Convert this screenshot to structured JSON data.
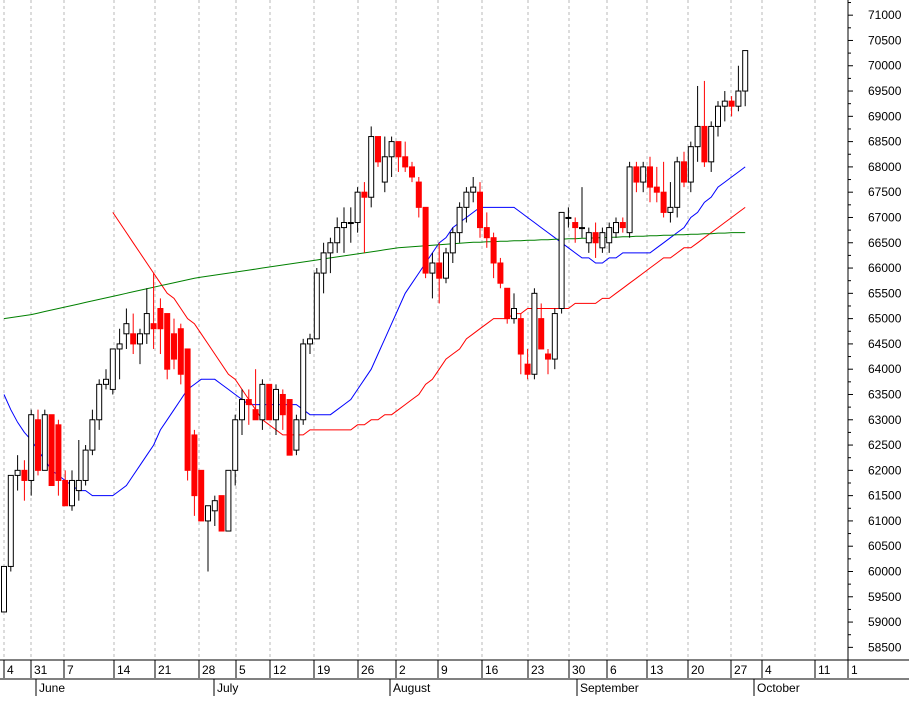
{
  "chart_data": {
    "type": "candlestick",
    "grid": "vertical dashed",
    "yaxis": {
      "side": "right",
      "range": [
        58250,
        71300
      ],
      "ticks": [
        58500,
        59000,
        59500,
        60000,
        60500,
        61000,
        61500,
        62000,
        62500,
        63000,
        63500,
        64000,
        64500,
        65000,
        65500,
        66000,
        66500,
        67000,
        67500,
        68000,
        68500,
        69000,
        69500,
        70000,
        70500,
        71000
      ]
    },
    "xaxis": {
      "day_labels": [
        "4",
        "31",
        "7",
        "14",
        "21",
        "28",
        "5",
        "12",
        "19",
        "26",
        "2",
        "9",
        "16",
        "23",
        "30",
        "6",
        "13",
        "20",
        "27",
        "4",
        "11",
        "1"
      ],
      "month_labels": [
        "June",
        "July",
        "August",
        "September",
        "October"
      ]
    },
    "candles": [
      [
        59200,
        60100,
        59200,
        60100
      ],
      [
        60100,
        61900,
        60000,
        61900
      ],
      [
        61900,
        62300,
        61600,
        62000
      ],
      [
        62000,
        62200,
        61400,
        61800
      ],
      [
        61800,
        63200,
        61500,
        63100
      ],
      [
        63000,
        63200,
        61900,
        62000
      ],
      [
        62000,
        63200,
        62000,
        63100
      ],
      [
        63100,
        63100,
        61700,
        61700
      ],
      [
        62900,
        63000,
        61500,
        61800
      ],
      [
        61800,
        62000,
        61300,
        61300
      ],
      [
        61300,
        62000,
        61200,
        61800
      ],
      [
        61600,
        62600,
        61400,
        61800
      ],
      [
        61800,
        62500,
        61700,
        62400
      ],
      [
        62400,
        63200,
        62300,
        63000
      ],
      [
        63000,
        63800,
        62800,
        63700
      ],
      [
        63700,
        64000,
        63600,
        63800
      ],
      [
        63600,
        64400,
        63500,
        64400
      ],
      [
        64400,
        64800,
        63800,
        64500
      ],
      [
        64700,
        65200,
        64400,
        64900
      ],
      [
        64700,
        65100,
        64300,
        64500
      ],
      [
        64500,
        64800,
        64100,
        64700
      ],
      [
        64700,
        65600,
        64500,
        65100
      ],
      [
        64900,
        65900,
        64400,
        64800
      ],
      [
        65200,
        65400,
        64300,
        64800
      ],
      [
        65100,
        65100,
        63800,
        64000
      ],
      [
        64700,
        65000,
        64000,
        64200
      ],
      [
        64800,
        64900,
        63700,
        63900
      ],
      [
        64400,
        64400,
        61800,
        62000
      ],
      [
        62700,
        62800,
        61100,
        61500
      ],
      [
        62000,
        62000,
        61000,
        61000
      ],
      [
        61000,
        61200,
        60000,
        61300
      ],
      [
        61200,
        61500,
        60900,
        61400
      ],
      [
        61500,
        61500,
        60800,
        60800
      ],
      [
        60800,
        62000,
        60800,
        62000
      ],
      [
        62000,
        63100,
        61700,
        63000
      ],
      [
        63000,
        63600,
        62700,
        63400
      ],
      [
        63400,
        63600,
        62900,
        63300
      ],
      [
        63200,
        64000,
        63000,
        63000
      ],
      [
        63000,
        63800,
        62800,
        63700
      ],
      [
        63700,
        63700,
        63000,
        63000
      ],
      [
        63000,
        63700,
        62700,
        63600
      ],
      [
        63500,
        63600,
        62800,
        63100
      ],
      [
        63400,
        63400,
        62300,
        62300
      ],
      [
        62400,
        63100,
        62300,
        63000
      ],
      [
        63000,
        64600,
        62900,
        64500
      ],
      [
        64500,
        64700,
        64300,
        64600
      ],
      [
        64600,
        66000,
        64600,
        65900
      ],
      [
        65900,
        66500,
        65500,
        66300
      ],
      [
        66300,
        66600,
        65900,
        66500
      ],
      [
        66500,
        67000,
        66300,
        66800
      ],
      [
        66800,
        67200,
        66300,
        66900
      ],
      [
        66900,
        67200,
        66500,
        66900
      ],
      [
        66900,
        67600,
        66700,
        67500
      ],
      [
        67500,
        67700,
        66300,
        67400
      ],
      [
        67400,
        68800,
        67200,
        68600
      ],
      [
        68600,
        68600,
        68000,
        68100
      ],
      [
        67700,
        68600,
        67500,
        68200
      ],
      [
        68200,
        68600,
        67800,
        68500
      ],
      [
        68500,
        68500,
        67900,
        68200
      ],
      [
        68200,
        68500,
        67900,
        68000
      ],
      [
        68000,
        68100,
        67700,
        67800
      ],
      [
        67700,
        67800,
        67000,
        67200
      ],
      [
        67200,
        67200,
        65800,
        65900
      ],
      [
        65900,
        66300,
        65400,
        66100
      ],
      [
        66100,
        66500,
        65300,
        65800
      ],
      [
        65800,
        66400,
        65700,
        66300
      ],
      [
        66300,
        66800,
        66100,
        66700
      ],
      [
        66700,
        67300,
        66500,
        67200
      ],
      [
        67200,
        67600,
        66900,
        67500
      ],
      [
        67500,
        67800,
        67300,
        67600
      ],
      [
        67500,
        67700,
        66600,
        66800
      ],
      [
        66800,
        67100,
        66400,
        66600
      ],
      [
        66600,
        66700,
        65800,
        66100
      ],
      [
        66100,
        66200,
        65600,
        65700
      ],
      [
        65600,
        65600,
        64900,
        65000
      ],
      [
        65000,
        65500,
        64900,
        65200
      ],
      [
        65000,
        65100,
        63900,
        64300
      ],
      [
        64100,
        64400,
        63800,
        63900
      ],
      [
        63900,
        65600,
        63800,
        65500
      ],
      [
        65000,
        65300,
        64400,
        64400
      ],
      [
        64300,
        64400,
        63900,
        64200
      ],
      [
        64200,
        65200,
        64000,
        65100
      ],
      [
        65200,
        67100,
        65100,
        67100
      ],
      [
        67000,
        67200,
        66800,
        67000
      ],
      [
        66900,
        67000,
        66500,
        66800
      ],
      [
        66800,
        67600,
        66600,
        66800
      ],
      [
        66500,
        66800,
        66300,
        66700
      ],
      [
        66700,
        66900,
        66200,
        66500
      ],
      [
        66400,
        66800,
        66300,
        66700
      ],
      [
        66500,
        66900,
        66300,
        66800
      ],
      [
        66700,
        67000,
        66600,
        66900
      ],
      [
        66900,
        67000,
        66700,
        66800
      ],
      [
        66700,
        68100,
        66600,
        68000
      ],
      [
        68000,
        68100,
        67500,
        67700
      ],
      [
        67700,
        68100,
        67500,
        68000
      ],
      [
        68000,
        68200,
        67300,
        67600
      ],
      [
        67600,
        68000,
        67300,
        67500
      ],
      [
        67500,
        68100,
        67000,
        67100
      ],
      [
        67100,
        67700,
        66900,
        67200
      ],
      [
        67200,
        68200,
        67000,
        68100
      ],
      [
        68100,
        68300,
        67600,
        67700
      ],
      [
        67700,
        68500,
        67500,
        68400
      ],
      [
        68400,
        69600,
        68100,
        68800
      ],
      [
        68800,
        69700,
        68000,
        68100
      ],
      [
        68100,
        68900,
        67900,
        68800
      ],
      [
        68800,
        69300,
        68600,
        69200
      ],
      [
        69200,
        69500,
        68900,
        69300
      ],
      [
        69300,
        69400,
        69000,
        69200
      ],
      [
        69200,
        70000,
        69100,
        69500
      ],
      [
        69500,
        70300,
        69200,
        70300
      ]
    ],
    "moving_averages": [
      {
        "color": "#0000ff",
        "values": [
          63500,
          63200,
          62950,
          62750,
          62600,
          62400,
          62200,
          62000,
          61900,
          61800,
          61700,
          61600,
          61600,
          61500,
          61500,
          61500,
          61500,
          61600,
          61700,
          61900,
          62100,
          62300,
          62500,
          62800,
          63000,
          63200,
          63400,
          63600,
          63700,
          63800,
          63800,
          63800,
          63700,
          63600,
          63500,
          63400,
          63300,
          63300,
          63300,
          63300,
          63300,
          63300,
          63300,
          63300,
          63200,
          63100,
          63100,
          63100,
          63100,
          63200,
          63300,
          63400,
          63600,
          63800,
          64000,
          64300,
          64600,
          64900,
          65200,
          65500,
          65700,
          65900,
          66100,
          66300,
          66500,
          66600,
          66800,
          66900,
          67000,
          67100,
          67200,
          67200,
          67200,
          67200,
          67200,
          67200,
          67100,
          67000,
          66900,
          66800,
          66700,
          66600,
          66500,
          66400,
          66300,
          66200,
          66200,
          66100,
          66100,
          66200,
          66200,
          66300,
          66300,
          66300,
          66300,
          66300,
          66400,
          66500,
          66600,
          66700,
          66800,
          67000,
          67100,
          67300,
          67400,
          67600,
          67700,
          67800,
          67900,
          68000
        ]
      },
      {
        "color": "#ff0000",
        "values": [
          67100,
          66900,
          66700,
          66500,
          66300,
          66100,
          65900,
          65700,
          65500,
          65400,
          65200,
          65000,
          64900,
          64700,
          64500,
          64300,
          64100,
          63900,
          63800,
          63600,
          63400,
          63200,
          63000,
          62900,
          62800,
          62700,
          62700,
          62700,
          62700,
          62800,
          62800,
          62800,
          62800,
          62800,
          62800,
          62800,
          62900,
          62900,
          63000,
          63000,
          63100,
          63100,
          63200,
          63300,
          63400,
          63500,
          63700,
          63800,
          64000,
          64200,
          64300,
          64400,
          64600,
          64700,
          64800,
          64900,
          65000,
          65000,
          65000,
          65100,
          65100,
          65200,
          65200,
          65200,
          65200,
          65200,
          65200,
          65200,
          65300,
          65300,
          65300,
          65300,
          65400,
          65400,
          65500,
          65600,
          65700,
          65800,
          65900,
          66000,
          66100,
          66200,
          66200,
          66300,
          66400,
          66400,
          66500,
          66600,
          66700,
          66800,
          66900,
          67000,
          67100,
          67200
        ]
      },
      {
        "color": "#008000",
        "values": [
          65000,
          65020,
          65040,
          65060,
          65080,
          65110,
          65140,
          65170,
          65200,
          65230,
          65260,
          65290,
          65320,
          65350,
          65380,
          65410,
          65440,
          65470,
          65500,
          65530,
          65560,
          65590,
          65620,
          65650,
          65680,
          65710,
          65740,
          65770,
          65800,
          65820,
          65840,
          65860,
          65880,
          65900,
          65920,
          65940,
          65960,
          65980,
          66000,
          66020,
          66040,
          66060,
          66080,
          66100,
          66120,
          66140,
          66160,
          66180,
          66200,
          66220,
          66240,
          66260,
          66280,
          66300,
          66320,
          66340,
          66360,
          66380,
          66400,
          66410,
          66420,
          66430,
          66440,
          66450,
          66460,
          66470,
          66480,
          66490,
          66500,
          66510,
          66510,
          66520,
          66520,
          66530,
          66530,
          66540,
          66540,
          66550,
          66550,
          66560,
          66560,
          66570,
          66570,
          66580,
          66580,
          66590,
          66590,
          66600,
          66600,
          66610,
          66610,
          66620,
          66620,
          66630,
          66630,
          66640,
          66640,
          66650,
          66650,
          66660,
          66660,
          66670,
          66670,
          66680,
          66680,
          66690,
          66690,
          66700,
          66700,
          66700
        ]
      }
    ]
  }
}
